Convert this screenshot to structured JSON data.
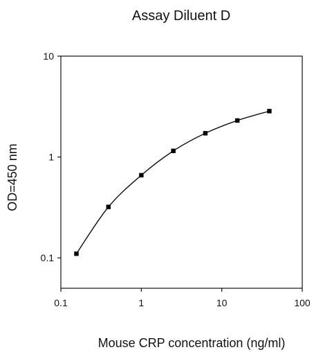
{
  "chart_data": {
    "type": "line",
    "title": "Assay Diluent D",
    "xlabel": "Mouse CRP concentration (ng/ml)",
    "ylabel": "OD=450 nm",
    "x_scale": "log",
    "y_scale": "log",
    "xlim": [
      0.1,
      100
    ],
    "ylim": [
      0.05,
      10
    ],
    "x_ticks": [
      0.1,
      1,
      10,
      100
    ],
    "x_tick_labels": [
      "0.1",
      "1",
      "10",
      "100"
    ],
    "y_ticks": [
      0.1,
      1,
      10
    ],
    "y_tick_labels": [
      "0.1",
      "1",
      "10"
    ],
    "grid": false,
    "legend": "none",
    "series": [
      {
        "x": [
          0.156,
          0.39,
          1.0,
          2.5,
          6.25,
          15.6,
          39.0
        ],
        "y": [
          0.11,
          0.32,
          0.66,
          1.15,
          1.72,
          2.3,
          2.85
        ],
        "color": "#000000"
      }
    ]
  }
}
